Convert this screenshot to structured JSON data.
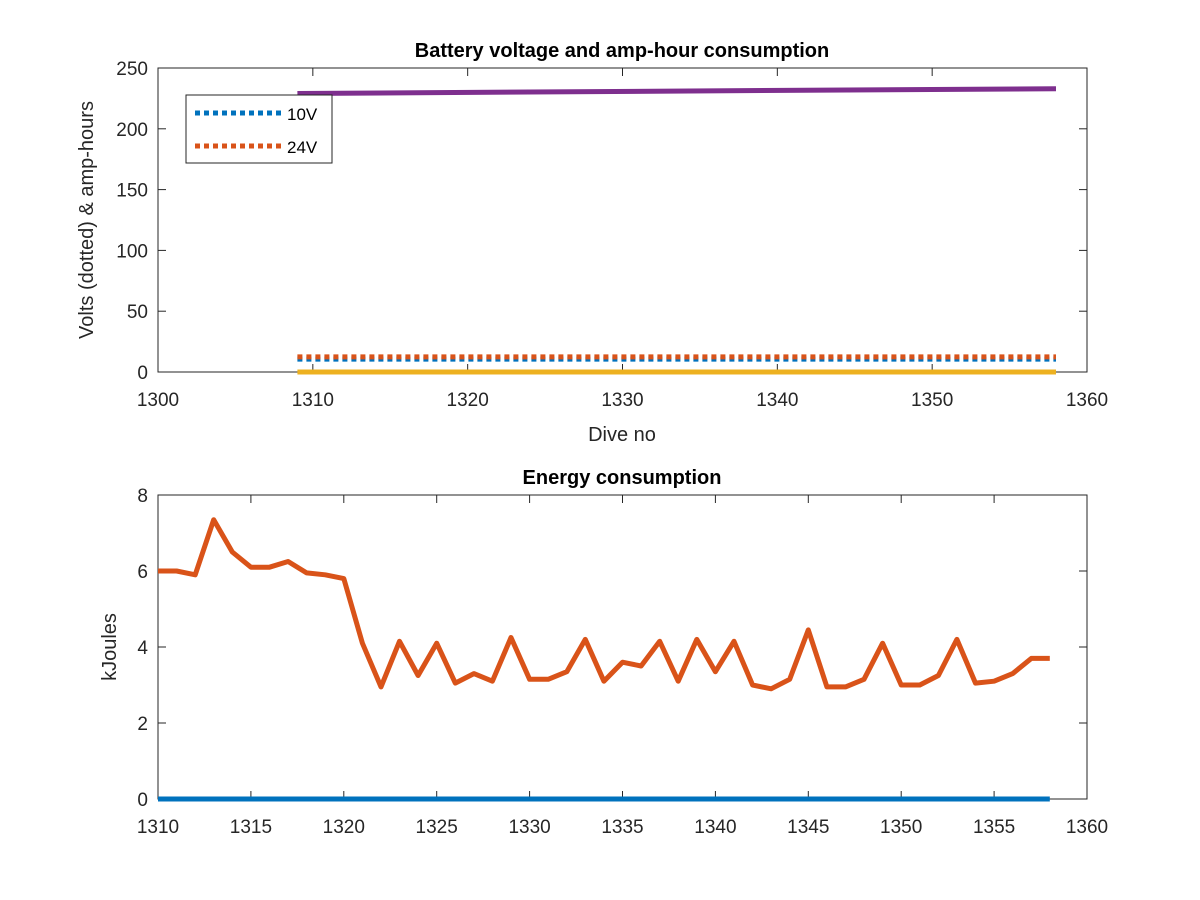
{
  "chart_data": [
    {
      "type": "line",
      "title": "Battery voltage and amp-hour consumption",
      "xlabel": "Dive no",
      "ylabel": "Volts (dotted) & amp-hours",
      "xlim": [
        1300,
        1360
      ],
      "ylim": [
        0,
        250
      ],
      "xticks": [
        "1300",
        "1310",
        "1320",
        "1330",
        "1340",
        "1350",
        "1360"
      ],
      "yticks": [
        "0",
        "50",
        "100",
        "150",
        "200",
        "250"
      ],
      "legend_position": "top-left",
      "grid": false,
      "series": [
        {
          "name": "10V",
          "style": "dotted",
          "color": "#0072BD",
          "x": [
            1309,
            1358
          ],
          "values": [
            10.6,
            10.6
          ]
        },
        {
          "name": "24V",
          "style": "dotted",
          "color": "#D95319",
          "x": [
            1309,
            1358
          ],
          "values": [
            12.4,
            12.4
          ]
        },
        {
          "style": "solid",
          "color": "#EDB120",
          "x": [
            1309,
            1358
          ],
          "values": [
            0,
            0
          ]
        },
        {
          "style": "solid",
          "color": "#7E2F8E",
          "x": [
            1309,
            1358
          ],
          "values": [
            229,
            233
          ]
        }
      ]
    },
    {
      "type": "line",
      "title": "Energy consumption",
      "xlabel": "",
      "ylabel": "kJoules",
      "xlim": [
        1310,
        1360
      ],
      "ylim": [
        0,
        8
      ],
      "xticks": [
        "1310",
        "1315",
        "1320",
        "1325",
        "1330",
        "1335",
        "1340",
        "1345",
        "1350",
        "1355",
        "1360"
      ],
      "yticks": [
        "0",
        "2",
        "4",
        "6",
        "8"
      ],
      "grid": false,
      "series": [
        {
          "style": "solid",
          "color": "#0072BD",
          "x": [
            1310,
            1358
          ],
          "values": [
            0,
            0
          ]
        },
        {
          "style": "solid",
          "color": "#D95319",
          "x": [
            1310,
            1311,
            1312,
            1313,
            1314,
            1315,
            1316,
            1317,
            1318,
            1319,
            1320,
            1321,
            1322,
            1323,
            1324,
            1325,
            1326,
            1327,
            1328,
            1329,
            1330,
            1331,
            1332,
            1333,
            1334,
            1335,
            1336,
            1337,
            1338,
            1339,
            1340,
            1341,
            1342,
            1343,
            1344,
            1345,
            1346,
            1347,
            1348,
            1349,
            1350,
            1351,
            1352,
            1353,
            1354,
            1355,
            1356,
            1357,
            1358
          ],
          "values": [
            6.0,
            6.0,
            5.9,
            7.35,
            6.5,
            6.1,
            6.1,
            6.25,
            5.95,
            5.9,
            5.8,
            4.1,
            2.95,
            4.15,
            3.25,
            4.1,
            3.05,
            3.3,
            3.1,
            4.25,
            3.15,
            3.15,
            3.35,
            4.2,
            3.1,
            3.6,
            3.5,
            4.15,
            3.1,
            4.2,
            3.35,
            4.15,
            3.0,
            2.9,
            3.15,
            4.45,
            2.95,
            2.95,
            3.15,
            4.1,
            3.0,
            3.0,
            3.25,
            4.2,
            3.05,
            3.1,
            3.3,
            3.7,
            3.7
          ]
        }
      ]
    }
  ]
}
